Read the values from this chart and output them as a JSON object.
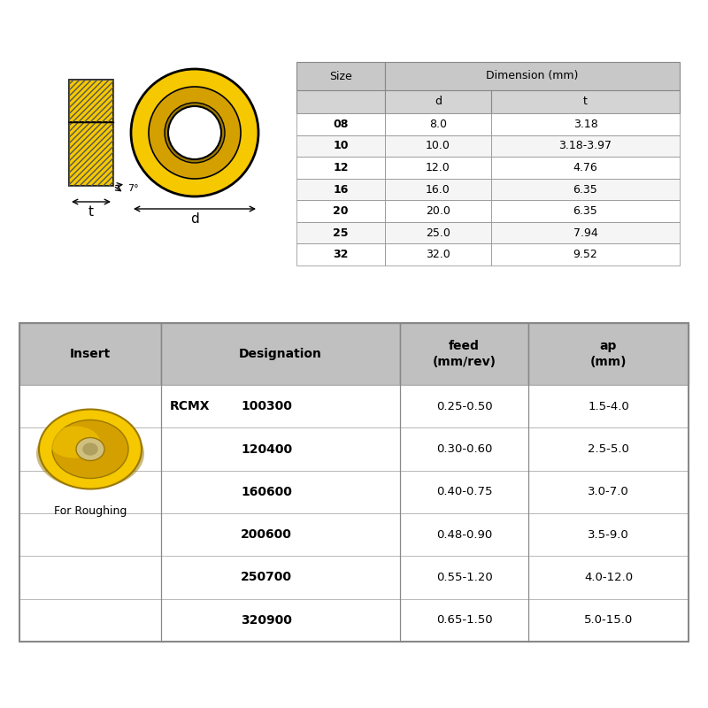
{
  "bg_color": "#ffffff",
  "dim_table": {
    "header_bg": "#c8c8c8",
    "subheader_bg": "#d4d4d4",
    "sizes": [
      "08",
      "10",
      "12",
      "16",
      "20",
      "25",
      "32"
    ],
    "d_vals": [
      "8.0",
      "10.0",
      "12.0",
      "16.0",
      "20.0",
      "25.0",
      "32.0"
    ],
    "t_vals": [
      "3.18",
      "3.18-3.97",
      "4.76",
      "6.35",
      "6.35",
      "7.94",
      "9.52"
    ]
  },
  "insert_table": {
    "header_bg": "#c0c0c0",
    "designations": [
      "100300",
      "120400",
      "160600",
      "200600",
      "250700",
      "320900"
    ],
    "feeds": [
      "0.25-0.50",
      "0.30-0.60",
      "0.40-0.75",
      "0.48-0.90",
      "0.55-1.20",
      "0.65-1.50"
    ],
    "ap_vals": [
      "1.5-4.0",
      "2.5-5.0",
      "3.0-7.0",
      "3.5-9.0",
      "4.0-12.0",
      "5.0-15.0"
    ],
    "insert_label": "RCMX",
    "col_insert": "Insert",
    "col_designation": "Designation",
    "col_feed": "feed\n(mm/rev)",
    "col_ap": "ap\n(mm)",
    "for_roughing": "For Roughing"
  },
  "yellow_bright": "#F5C800",
  "yellow_mid": "#D4A000",
  "yellow_dark": "#9B7800",
  "insert_angle": "7°",
  "dim_label_d": "d",
  "dim_label_t": "t"
}
